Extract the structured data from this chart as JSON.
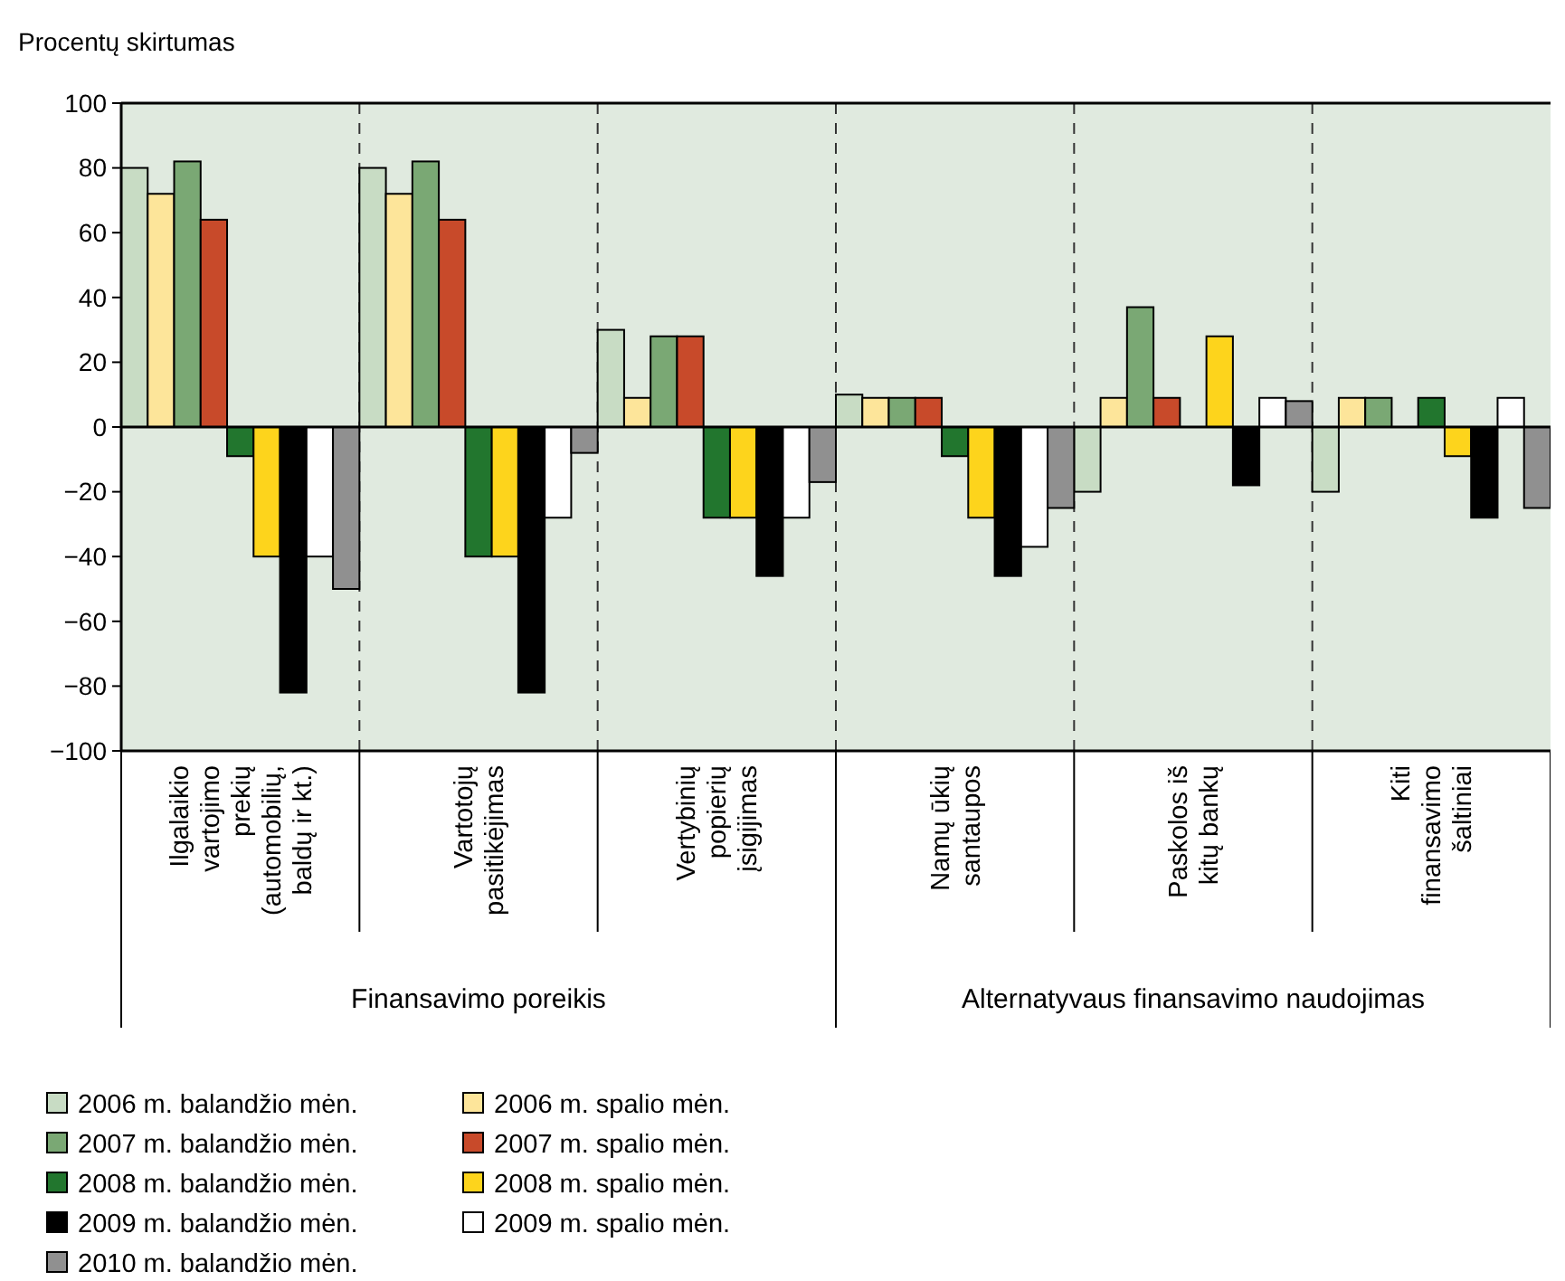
{
  "chart_data": {
    "type": "bar",
    "ylabel": "Procentų skirtumas",
    "categories": [
      "Ilgalaikio\nvartojimo\nprekių\n(automobilių,\nbaldų ir kt.)",
      "Vartotojų\npasitikėjimas",
      "Vertybinių\npopierių\nįsigijimas",
      "Namų ūkių\nsantaupos",
      "Paskolos iš\nkitų bankų",
      "Kiti\nfinansavimo\nšaltiniai"
    ],
    "series": [
      {
        "name": "2006 m. balandžio mėn.",
        "color": "#c8dcc4",
        "values": [
          80,
          80,
          30,
          10,
          -20,
          -20
        ]
      },
      {
        "name": "2006 m. spalio mėn.",
        "color": "#fde59a",
        "values": [
          72,
          72,
          9,
          9,
          9,
          9
        ]
      },
      {
        "name": "2007 m. balandžio mėn.",
        "color": "#7aa874",
        "values": [
          82,
          82,
          28,
          9,
          37,
          9
        ]
      },
      {
        "name": "2007 m. spalio mėn.",
        "color": "#c84a2a",
        "values": [
          64,
          64,
          28,
          9,
          9,
          0
        ]
      },
      {
        "name": "2008 m. balandžio mėn.",
        "color": "#22762e",
        "values": [
          -9,
          -40,
          -28,
          -9,
          0,
          9
        ]
      },
      {
        "name": "2008 m. spalio mėn.",
        "color": "#fdd41c",
        "values": [
          -40,
          -40,
          -28,
          -28,
          28,
          -9
        ]
      },
      {
        "name": "2009 m. balandžio mėn.",
        "color": "#000000",
        "values": [
          -82,
          -82,
          -46,
          -46,
          -18,
          -28
        ]
      },
      {
        "name": "2009 m. spalio mėn.",
        "color": "#ffffff",
        "values": [
          -40,
          -28,
          -28,
          -37,
          9,
          9
        ]
      },
      {
        "name": "2010 m. balandžio mėn.",
        "color": "#909090",
        "values": [
          -50,
          -8,
          -17,
          -25,
          8,
          -25
        ]
      }
    ],
    "ylim": [
      -100,
      100
    ],
    "yticks": [
      -100,
      -80,
      -60,
      -40,
      -20,
      0,
      20,
      40,
      60,
      80,
      100
    ],
    "annotations": [
      "Finansavimo poreikis",
      "Alternatyvaus finansavimo naudojimas"
    ],
    "legend": "bottom left"
  }
}
